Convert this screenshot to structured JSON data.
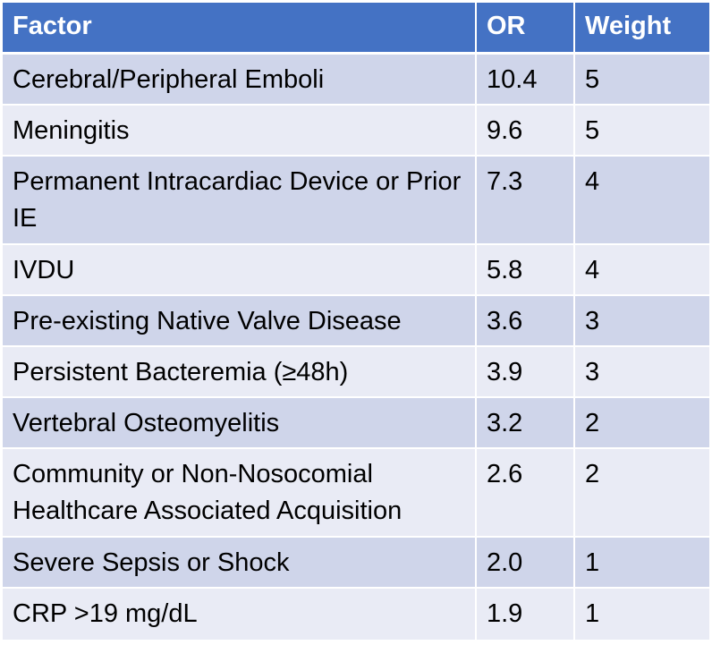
{
  "table": {
    "headers": {
      "factor": "Factor",
      "or": "OR",
      "weight": "Weight"
    },
    "rows": [
      {
        "factor": "Cerebral/Peripheral Emboli",
        "or": "10.4",
        "weight": "5"
      },
      {
        "factor": "Meningitis",
        "or": "9.6",
        "weight": "5"
      },
      {
        "factor": "Permanent Intracardiac Device or Prior IE",
        "or": "7.3",
        "weight": "4"
      },
      {
        "factor": "IVDU",
        "or": "5.8",
        "weight": "4"
      },
      {
        "factor": "Pre-existing Native Valve Disease",
        "or": "3.6",
        "weight": "3"
      },
      {
        "factor": "Persistent Bacteremia (≥48h)",
        "or": "3.9",
        "weight": "3"
      },
      {
        "factor": "Vertebral Osteomyelitis",
        "or": "3.2",
        "weight": "2"
      },
      {
        "factor": "Community or Non-Nosocomial Healthcare Associated Acquisition",
        "or": "2.6",
        "weight": "2"
      },
      {
        "factor": "Severe Sepsis or Shock",
        "or": "2.0",
        "weight": "1"
      },
      {
        "factor": "CRP >19 mg/dL",
        "or": "1.9",
        "weight": "1"
      }
    ]
  },
  "colors": {
    "header_bg": "#4472C4",
    "row_dark": "#CFD5EA",
    "row_light": "#E9EBF5"
  }
}
